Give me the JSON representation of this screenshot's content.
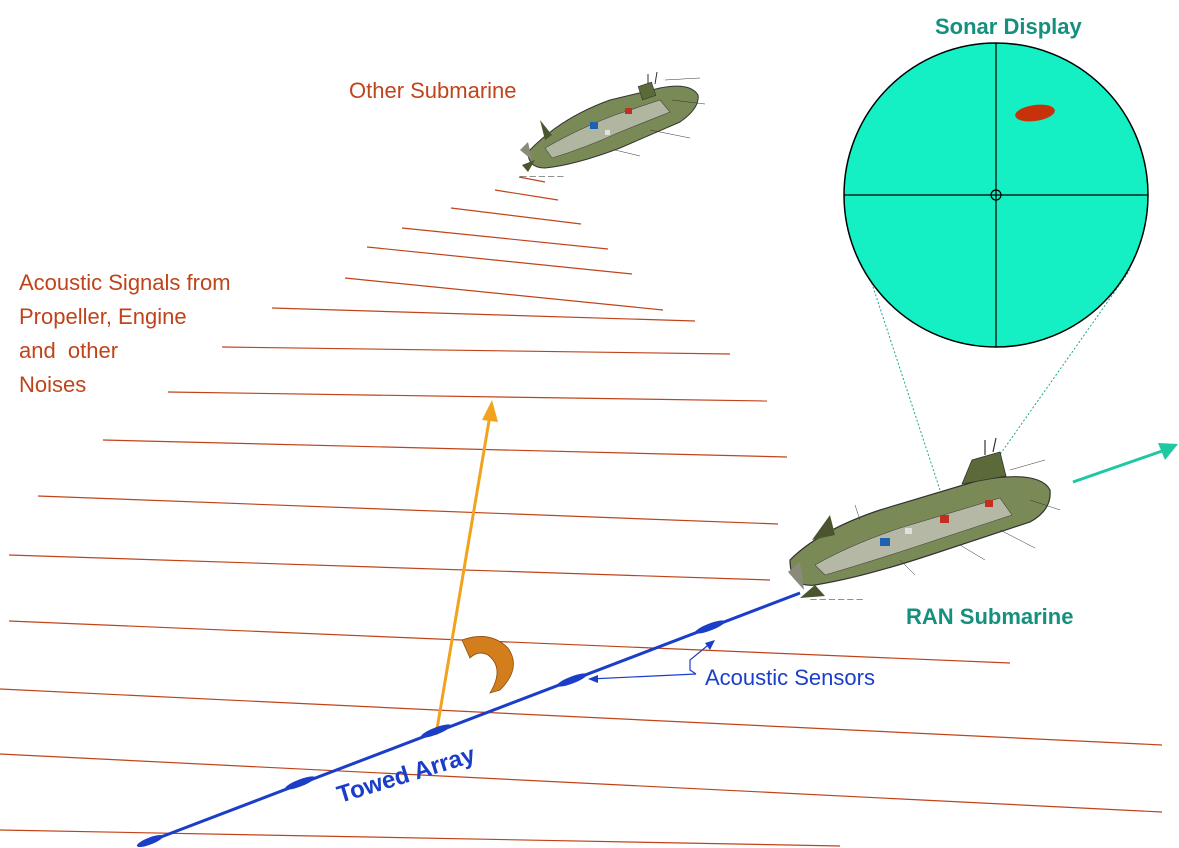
{
  "labels": {
    "other_submarine": "Other Submarine",
    "acoustic_signals": [
      "Acoustic Signals from",
      "Propeller, Engine",
      "and  other",
      "Noises"
    ],
    "sonar_display": "Sonar Display",
    "ran_submarine": "RAN Submarine",
    "acoustic_sensors": "Acoustic Sensors",
    "towed_array": "Towed Array"
  },
  "colors": {
    "signal_lines": "#c0441a",
    "array": "#1a3ec8",
    "sonar_fill": "#14f0c4",
    "sonar_target": "#c8320a",
    "bearing_arrow": "#f2a31e",
    "rotation_arrow": "#d27e1c",
    "heading_arrow": "#1ec8a0",
    "teal_text": "#16907e"
  },
  "icons": {
    "rotation": "curved-arrow-icon",
    "submarines": "submarine-cutaway-icon"
  }
}
